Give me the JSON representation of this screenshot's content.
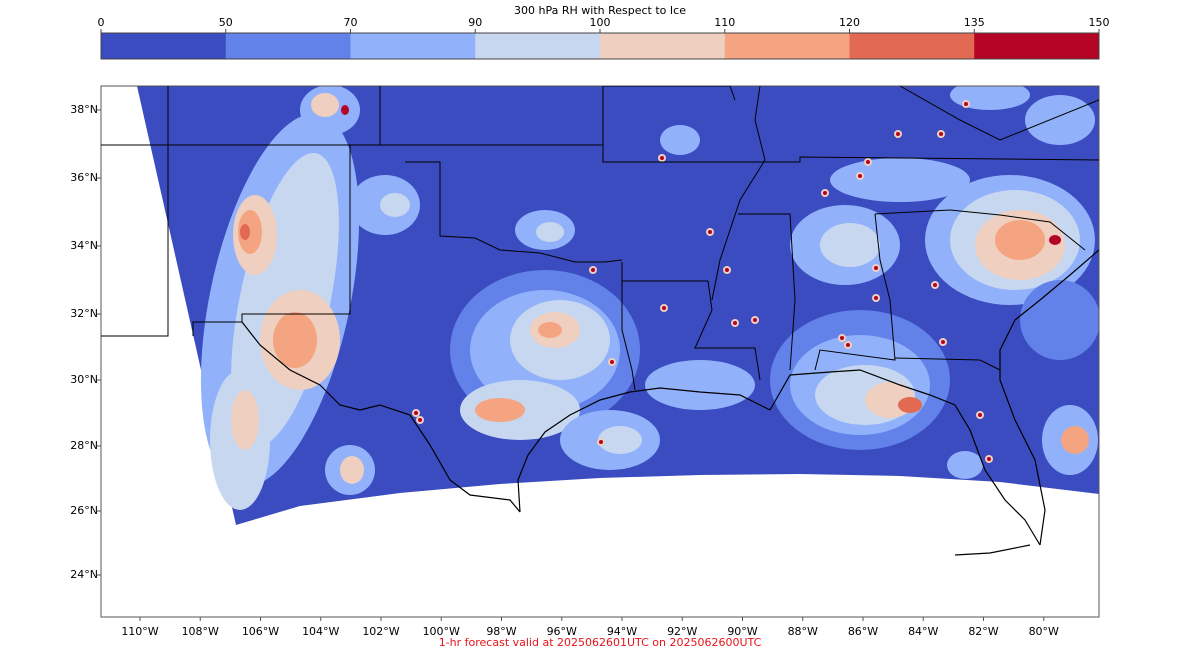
{
  "colorbar": {
    "title": "300 hPa RH with Respect to Ice",
    "ticks": [
      "0",
      "50",
      "70",
      "90",
      "100",
      "110",
      "120",
      "135",
      "150"
    ],
    "colors": [
      "#3b4cc0",
      "#6282ea",
      "#91b2fb",
      "#c8d7f0",
      "#efcfbf",
      "#f5a482",
      "#e26a52",
      "#b40426"
    ]
  },
  "map": {
    "lat_labels": [
      "38°N",
      "36°N",
      "34°N",
      "32°N",
      "30°N",
      "28°N",
      "26°N",
      "24°N"
    ],
    "lon_labels": [
      "110°W",
      "108°W",
      "106°W",
      "104°W",
      "102°W",
      "100°W",
      "98°W",
      "96°W",
      "94°W",
      "92°W",
      "90°W",
      "88°W",
      "86°W",
      "84°W",
      "82°W",
      "80°W"
    ],
    "background_field_color": "#3b4cc0"
  },
  "footer": {
    "text": "1-hr forecast valid at 2025062601UTC on 2025062600UTC"
  }
}
